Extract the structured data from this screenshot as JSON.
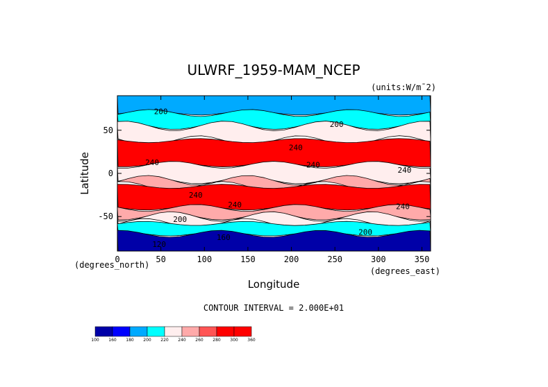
{
  "chart_data": {
    "type": "heatmap",
    "title": "ULWRF_1959-MAM_NCEP",
    "units": "(units:W/m¯2)",
    "xlabel": "Longitude",
    "ylabel": "Latitude",
    "x_unit_label": "(degrees_east)",
    "y_unit_label": "(degrees_north)",
    "xlim": [
      0,
      360
    ],
    "ylim": [
      -90,
      90
    ],
    "x_ticks": [
      0,
      50,
      100,
      150,
      200,
      250,
      300,
      350
    ],
    "y_ticks": [
      -50,
      0,
      50
    ],
    "contour_interval_text": "CONTOUR INTERVAL = 2.000E+01",
    "contour_labels": [
      {
        "text": "200",
        "lon": 50,
        "lat": 72
      },
      {
        "text": "200",
        "lon": 252,
        "lat": 57
      },
      {
        "text": "240",
        "lon": 205,
        "lat": 30
      },
      {
        "text": "240",
        "lon": 40,
        "lat": 13
      },
      {
        "text": "240",
        "lon": 225,
        "lat": 10
      },
      {
        "text": "240",
        "lon": 330,
        "lat": 4
      },
      {
        "text": "240",
        "lon": 90,
        "lat": -25
      },
      {
        "text": "240",
        "lon": 135,
        "lat": -36
      },
      {
        "text": "240",
        "lon": 328,
        "lat": -38
      },
      {
        "text": "200",
        "lon": 72,
        "lat": -53
      },
      {
        "text": "200",
        "lon": 285,
        "lat": -68
      },
      {
        "text": "160",
        "lon": 122,
        "lat": -74
      },
      {
        "text": "120",
        "lon": 48,
        "lat": -82
      }
    ],
    "colorbar": {
      "levels": [
        100,
        160,
        180,
        200,
        220,
        240,
        260,
        280,
        300,
        360
      ],
      "colors": [
        "#0000a8",
        "#0000ff",
        "#00aaff",
        "#00ffff",
        "#ffeeee",
        "#ffaaaa",
        "#ff5555",
        "#ff0000",
        "#ff0000"
      ]
    },
    "latitude_bands": [
      {
        "lat_from": 90,
        "lat_to": 70,
        "range": "180-200"
      },
      {
        "lat_from": 70,
        "lat_to": 55,
        "range": "200-220"
      },
      {
        "lat_from": 55,
        "lat_to": 38,
        "range": "220-240"
      },
      {
        "lat_from": 38,
        "lat_to": 10,
        "range": "260-300"
      },
      {
        "lat_from": 10,
        "lat_to": -8,
        "range": "200-260"
      },
      {
        "lat_from": -8,
        "lat_to": -15,
        "range": "240-260"
      },
      {
        "lat_from": -15,
        "lat_to": -40,
        "range": "260-300"
      },
      {
        "lat_from": -40,
        "lat_to": -50,
        "range": "240-260"
      },
      {
        "lat_from": -50,
        "lat_to": -58,
        "range": "220-240"
      },
      {
        "lat_from": -58,
        "lat_to": -70,
        "range": "200-220"
      },
      {
        "lat_from": -70,
        "lat_to": -90,
        "range": "100-180"
      }
    ]
  }
}
